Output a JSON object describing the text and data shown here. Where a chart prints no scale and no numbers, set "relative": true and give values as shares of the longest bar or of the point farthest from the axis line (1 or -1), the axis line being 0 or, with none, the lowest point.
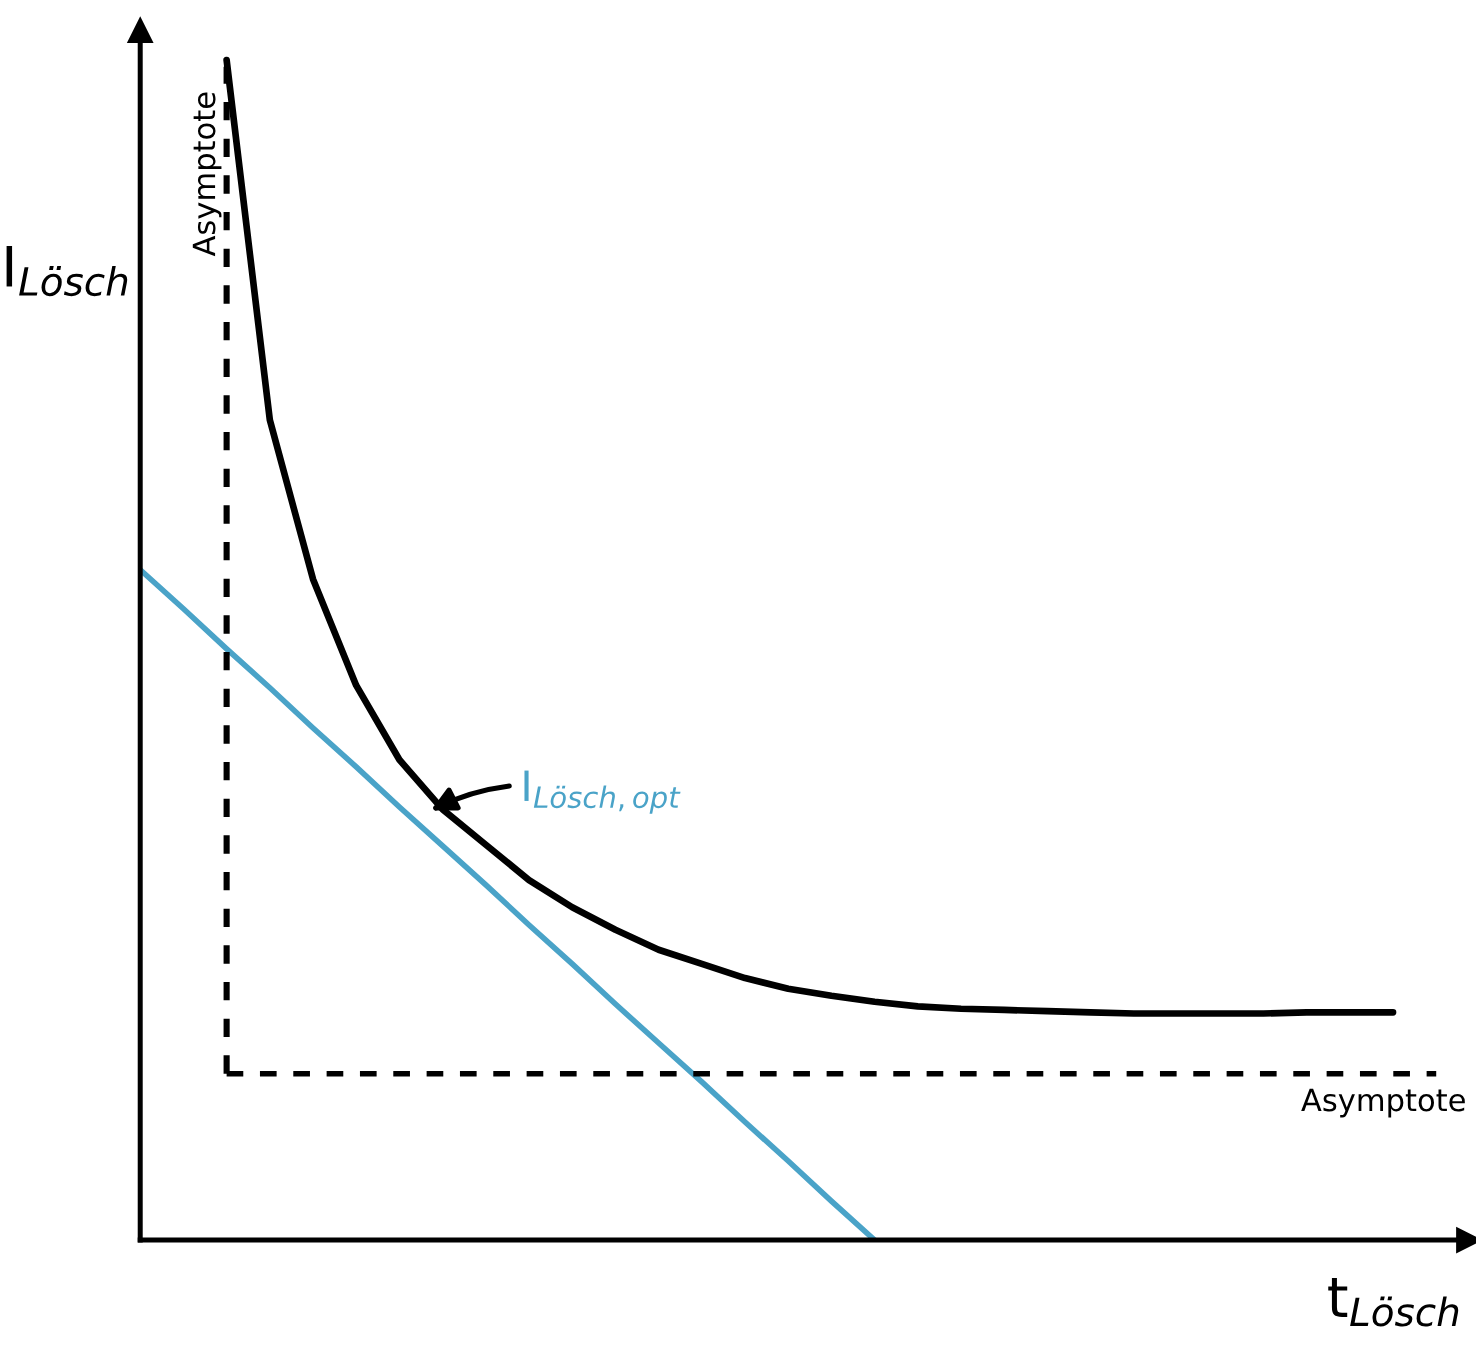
{
  "chart_data": {
    "type": "line",
    "relative": true,
    "xlabel": "t$_{Lösch}$",
    "ylabel": "I$_{Lösch}$",
    "categories": [
      null,
      null,
      null,
      null,
      null,
      null,
      null,
      null,
      null,
      null,
      null,
      null,
      null,
      null,
      null,
      null,
      null,
      null,
      null,
      null,
      null,
      null,
      null,
      null,
      null,
      null,
      null,
      null,
      null,
      null,
      null
    ],
    "series": [
      {
        "color": "#000000",
        "values": [
          null,
          null,
          1.0,
          0.695,
          0.56,
          0.47,
          0.407,
          0.365,
          0.335,
          0.305,
          0.282,
          0.263,
          0.246,
          0.234,
          0.222,
          0.213,
          0.207,
          0.202,
          0.198,
          0.196,
          0.195,
          0.194,
          0.193,
          0.192,
          0.192,
          0.192,
          0.192,
          0.193,
          0.193,
          0.193,
          null
        ]
      },
      {
        "color": "#4aa3c8",
        "values": [
          0.568,
          0.535,
          0.501,
          0.468,
          0.434,
          0.401,
          0.367,
          0.334,
          0.301,
          0.267,
          0.234,
          0.2,
          0.167,
          0.134,
          0.1,
          0.067,
          0.033,
          0,
          null,
          null,
          null,
          null,
          null,
          null,
          null,
          null,
          null,
          null,
          null,
          null,
          null
        ]
      },
      {
        "color": "#000000",
        "line_style": "dashed",
        "values": [
          null,
          null,
          0.141,
          0.141,
          0.141,
          0.141,
          0.141,
          0.141,
          0.141,
          0.141,
          0.141,
          0.141,
          0.141,
          0.141,
          0.141,
          0.141,
          0.141,
          0.141,
          0.141,
          0.141,
          0.141,
          0.141,
          0.141,
          0.141,
          0.141,
          0.141,
          0.141,
          0.141,
          0.141,
          0.141,
          0.141
        ]
      }
    ],
    "annotations": [
      "I$_{Lösch,opt}$",
      "Asymptote",
      "Asymptote"
    ],
    "marker": "none",
    "line_style": "solid"
  }
}
